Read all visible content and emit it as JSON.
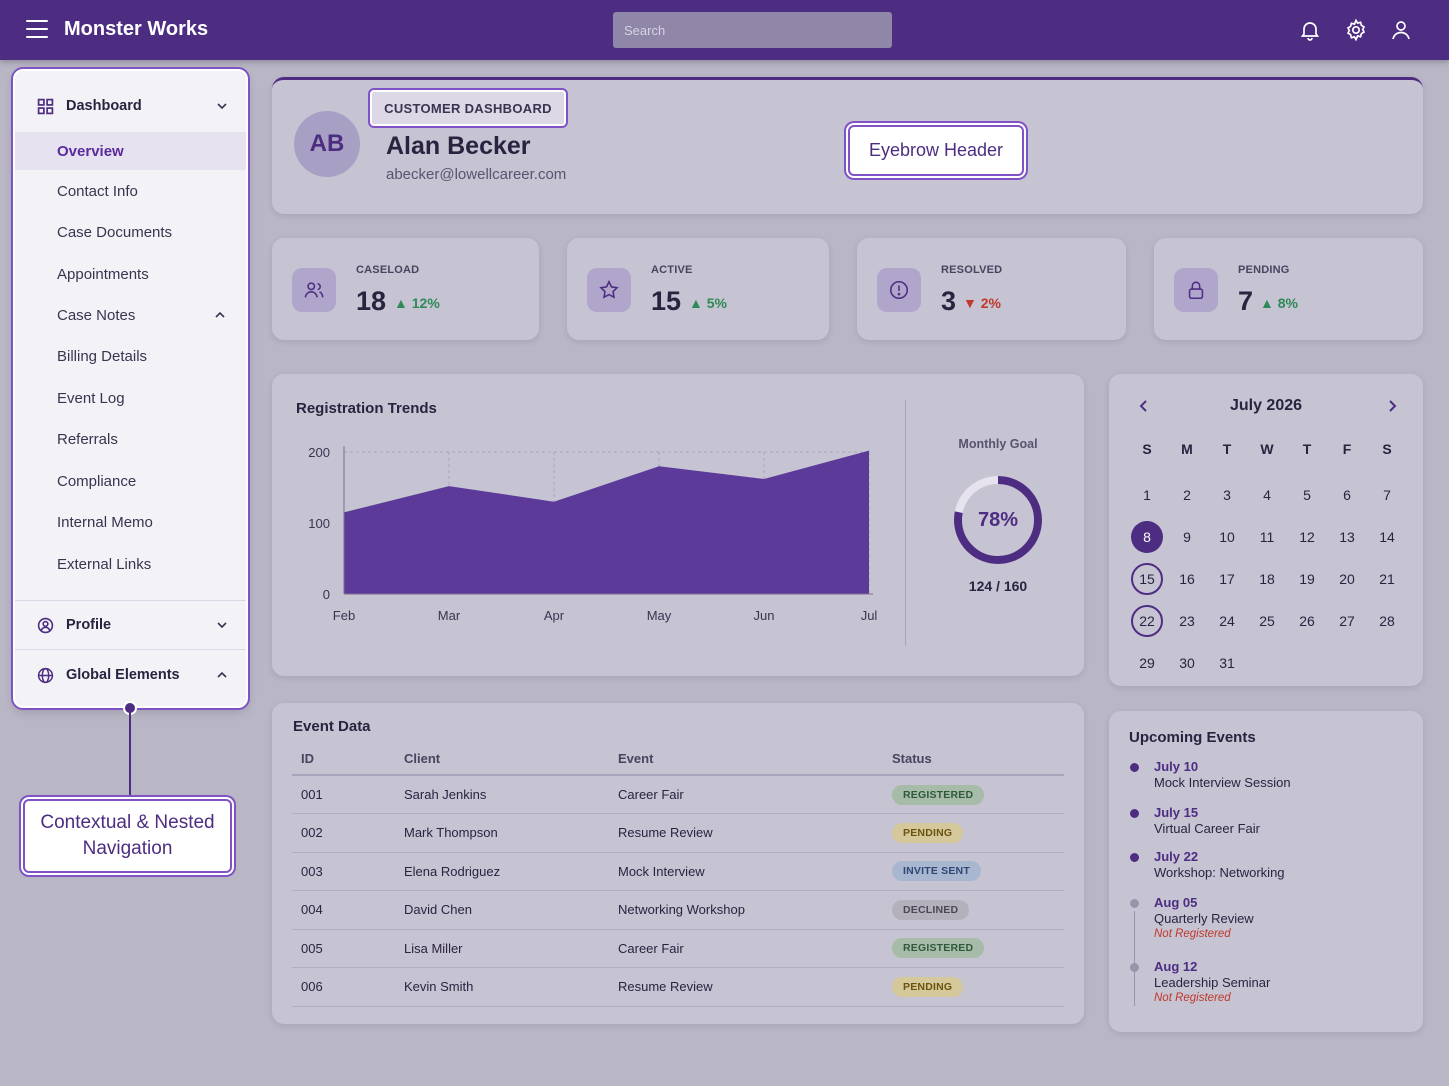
{
  "app": {
    "title": "Monster Works"
  },
  "search": {
    "placeholder": "Search"
  },
  "sidebar": {
    "dashboard": {
      "label": "Dashboard"
    },
    "items": [
      {
        "label": "Overview",
        "active": true
      },
      {
        "label": "Contact Info"
      },
      {
        "label": "Case Documents"
      },
      {
        "label": "Appointments"
      },
      {
        "label": "Case Notes"
      },
      {
        "label": "Billing Details"
      },
      {
        "label": "Event Log"
      },
      {
        "label": "Referrals"
      },
      {
        "label": "Compliance"
      },
      {
        "label": "Internal Memo"
      },
      {
        "label": "External Links"
      }
    ],
    "profile": {
      "label": "Profile"
    },
    "global": {
      "label": "Global Elements"
    }
  },
  "callouts": {
    "eyebrow": "Eyebrow Header",
    "nav": "Contextual & Nested Navigation"
  },
  "profile": {
    "eyebrow": "CUSTOMER DASHBOARD",
    "initials": "AB",
    "name": "Alan Becker",
    "email": "abecker@lowellcareer.com"
  },
  "stats": [
    {
      "label": "CASELOAD",
      "value": "18",
      "trend": "12%",
      "direction": "up",
      "icon": "users-icon"
    },
    {
      "label": "ACTIVE",
      "value": "15",
      "trend": "5%",
      "direction": "up",
      "icon": "star-icon"
    },
    {
      "label": "RESOLVED",
      "value": "3",
      "trend": "2%",
      "direction": "down",
      "icon": "alert-icon"
    },
    {
      "label": "PENDING",
      "value": "7",
      "trend": "8%",
      "direction": "up",
      "icon": "lock-icon"
    }
  ],
  "trends": {
    "title": "Registration Trends",
    "goal": {
      "label": "Monthly Goal",
      "percent": "78%",
      "fraction": 0.78,
      "count": "124 / 160"
    }
  },
  "chart_data": {
    "type": "area",
    "title": "Registration Trends",
    "xlabel": "",
    "ylabel": "",
    "categories": [
      "Feb",
      "Mar",
      "Apr",
      "May",
      "Jun",
      "Jul"
    ],
    "values": [
      115,
      152,
      130,
      180,
      162,
      202
    ],
    "yticks": [
      "200",
      "100",
      "0"
    ],
    "ylim": [
      0,
      200
    ],
    "color": "#5b3a99",
    "grid": true
  },
  "calendar": {
    "month": "July 2026",
    "weekdays": [
      "S",
      "M",
      "T",
      "W",
      "T",
      "F",
      "S"
    ],
    "days": [
      "1",
      "2",
      "3",
      "4",
      "5",
      "6",
      "7",
      "8",
      "9",
      "10",
      "11",
      "12",
      "13",
      "14",
      "15",
      "16",
      "17",
      "18",
      "19",
      "20",
      "21",
      "22",
      "23",
      "24",
      "25",
      "26",
      "27",
      "28",
      "29",
      "30",
      "31"
    ],
    "first_weekday": 0,
    "selected": "8",
    "highlighted": [
      "15",
      "22"
    ]
  },
  "events_table": {
    "title": "Event Data",
    "columns": [
      "ID",
      "Client",
      "Event",
      "Status"
    ],
    "rows": [
      {
        "id": "001",
        "client": "Sarah Jenkins",
        "event": "Career Fair",
        "status": "REGISTERED",
        "kind": "reg"
      },
      {
        "id": "002",
        "client": "Mark Thompson",
        "event": "Resume Review",
        "status": "PENDING",
        "kind": "pend"
      },
      {
        "id": "003",
        "client": "Elena Rodriguez",
        "event": "Mock Interview",
        "status": "INVITE SENT",
        "kind": "inv"
      },
      {
        "id": "004",
        "client": "David Chen",
        "event": "Networking Workshop",
        "status": "DECLINED",
        "kind": "dec"
      },
      {
        "id": "005",
        "client": "Lisa Miller",
        "event": "Career Fair",
        "status": "REGISTERED",
        "kind": "reg"
      },
      {
        "id": "006",
        "client": "Kevin Smith",
        "event": "Resume Review",
        "status": "PENDING",
        "kind": "pend"
      }
    ]
  },
  "upcoming": {
    "title": "Upcoming Events",
    "items": [
      {
        "date": "July 10",
        "name": "Mock Interview Session",
        "note": ""
      },
      {
        "date": "July 15",
        "name": "Virtual Career Fair",
        "note": ""
      },
      {
        "date": "July 22",
        "name": "Workshop: Networking",
        "note": ""
      },
      {
        "date": "Aug 05",
        "name": "Quarterly Review",
        "note": "Not Registered"
      },
      {
        "date": "Aug 12",
        "name": "Leadership Seminar",
        "note": "Not Registered"
      }
    ]
  }
}
